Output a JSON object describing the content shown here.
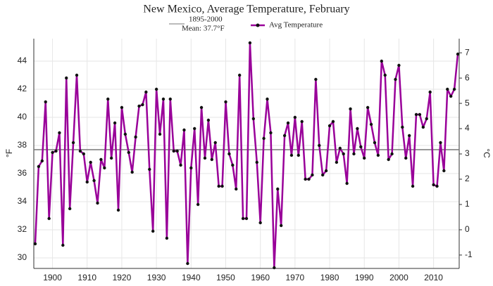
{
  "chart_data": {
    "type": "line",
    "title": "New Mexico, Average Temperature, February",
    "ylabel": "°F",
    "y2label": "°C",
    "mean": 37.7,
    "mean_period": "1895-2000",
    "mean_label": "Mean: 37.7°F",
    "mean_color": "#777777",
    "x": [
      1895,
      1896,
      1897,
      1898,
      1899,
      1900,
      1901,
      1902,
      1903,
      1904,
      1905,
      1906,
      1907,
      1908,
      1909,
      1910,
      1911,
      1912,
      1913,
      1914,
      1915,
      1916,
      1917,
      1918,
      1919,
      1920,
      1921,
      1922,
      1923,
      1924,
      1925,
      1926,
      1927,
      1928,
      1929,
      1930,
      1931,
      1932,
      1933,
      1934,
      1935,
      1936,
      1937,
      1938,
      1939,
      1940,
      1941,
      1942,
      1943,
      1944,
      1945,
      1946,
      1947,
      1948,
      1949,
      1950,
      1951,
      1952,
      1953,
      1954,
      1955,
      1956,
      1957,
      1958,
      1959,
      1960,
      1961,
      1962,
      1963,
      1964,
      1965,
      1966,
      1967,
      1968,
      1969,
      1970,
      1971,
      1972,
      1973,
      1974,
      1975,
      1976,
      1977,
      1978,
      1979,
      1980,
      1981,
      1982,
      1983,
      1984,
      1985,
      1986,
      1987,
      1988,
      1989,
      1990,
      1991,
      1992,
      1993,
      1994,
      1995,
      1996,
      1997,
      1998,
      1999,
      2000,
      2001,
      2002,
      2003,
      2004,
      2005,
      2006,
      2007,
      2008,
      2009,
      2010,
      2011,
      2012,
      2013,
      2014,
      2015,
      2016,
      2017
    ],
    "series": [
      {
        "name": "Avg Temperature",
        "color": "#990099",
        "values": [
          31.0,
          36.5,
          36.9,
          41.1,
          32.8,
          37.5,
          37.6,
          38.9,
          30.9,
          42.8,
          33.5,
          38.2,
          43.0,
          37.6,
          37.4,
          35.4,
          36.8,
          35.5,
          33.9,
          37.0,
          36.4,
          41.3,
          37.1,
          39.6,
          33.4,
          40.7,
          38.8,
          37.5,
          36.1,
          38.6,
          40.8,
          40.9,
          41.8,
          36.3,
          31.9,
          42.0,
          38.8,
          41.3,
          31.4,
          41.3,
          37.6,
          37.6,
          36.6,
          39.1,
          29.6,
          36.4,
          39.2,
          33.8,
          40.7,
          37.1,
          39.8,
          37.0,
          38.2,
          35.1,
          35.1,
          41.1,
          37.4,
          36.6,
          34.9,
          43.0,
          32.8,
          32.8,
          45.3,
          39.9,
          36.8,
          32.5,
          38.5,
          41.3,
          38.9,
          29.3,
          34.9,
          32.3,
          38.7,
          39.6,
          37.3,
          40.0,
          37.3,
          39.7,
          35.6,
          35.6,
          35.9,
          42.7,
          38.0,
          35.9,
          36.2,
          39.4,
          39.7,
          36.8,
          37.8,
          37.4,
          35.3,
          40.6,
          37.4,
          39.2,
          37.9,
          37.1,
          40.7,
          39.5,
          38.2,
          37.3,
          44.0,
          43.0,
          37.0,
          37.4,
          42.7,
          43.7,
          39.3,
          37.1,
          38.7,
          35.1,
          40.2,
          40.2,
          39.3,
          39.9,
          41.8,
          35.2,
          35.1,
          38.2,
          36.2,
          42.0,
          41.5,
          42.0,
          44.5
        ]
      }
    ],
    "xlim": [
      1894.6,
      2017.4
    ],
    "xticks": [
      1900,
      1910,
      1920,
      1930,
      1940,
      1950,
      1960,
      1970,
      1980,
      1990,
      2000,
      2010
    ],
    "ylim": [
      29.25,
      45.6
    ],
    "yticks": [
      30,
      32,
      34,
      36,
      38,
      40,
      42,
      44
    ],
    "y2lim": [
      -1.53,
      7.56
    ],
    "y2ticks": [
      -1,
      0,
      1,
      2,
      3,
      4,
      5,
      6,
      7
    ],
    "grid": true
  }
}
